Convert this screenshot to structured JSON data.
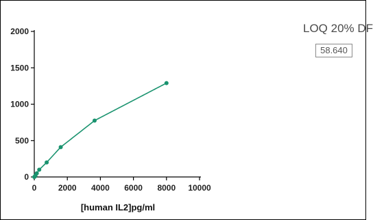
{
  "colors": {
    "series": "#1a936f",
    "axis": "#000000"
  },
  "loq": {
    "label": "LOQ 20% DF",
    "value": "58.640"
  },
  "chart_data": {
    "type": "scatter",
    "title": "",
    "xlabel": "[human IL2]pg/ml",
    "ylabel": "",
    "xlim": [
      0,
      10000
    ],
    "ylim": [
      0,
      2000
    ],
    "x_ticks": [
      "0",
      "2000",
      "4000",
      "6000",
      "8000",
      "10000"
    ],
    "y_ticks": [
      "0",
      "500",
      "1000",
      "1500",
      "2000"
    ],
    "grid": false,
    "legend": "none",
    "series": [
      {
        "marker": "circle",
        "x": [
          0,
          30,
          70,
          150,
          300,
          750,
          1600,
          3650,
          8000
        ],
        "y": [
          0,
          5,
          20,
          50,
          100,
          200,
          410,
          775,
          1290
        ]
      }
    ],
    "fit": {
      "type": "curve",
      "x_range": [
        0,
        8000
      ]
    }
  }
}
